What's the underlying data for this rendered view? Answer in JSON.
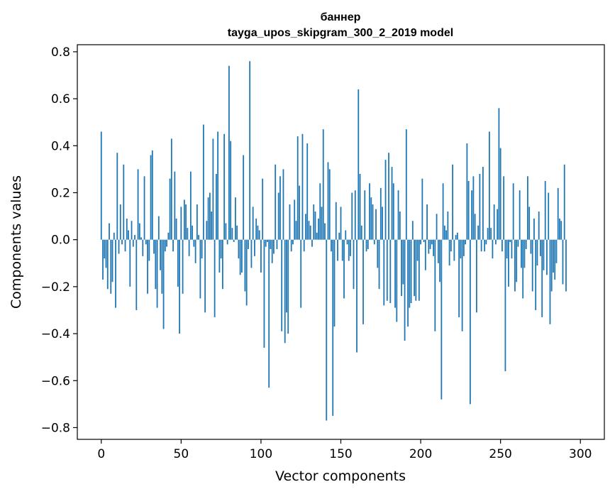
{
  "chart_data": {
    "type": "bar",
    "title_line1": "баннер",
    "title_line2": "tayga_upos_skipgram_300_2_2019 model",
    "xlabel": "Vector components",
    "ylabel": "Components values",
    "xlim": [
      -15,
      315
    ],
    "ylim": [
      -0.85,
      0.83
    ],
    "x_ticks": [
      0,
      50,
      100,
      150,
      200,
      250,
      300
    ],
    "x_tick_labels": [
      "0",
      "50",
      "100",
      "150",
      "200",
      "250",
      "300"
    ],
    "y_ticks": [
      0.8,
      0.6,
      0.4,
      0.2,
      0.0,
      -0.2,
      -0.4,
      -0.6,
      -0.8
    ],
    "y_tick_labels": [
      "0.8",
      "0.6",
      "0.4",
      "0.2",
      "0.0",
      "−0.2",
      "−0.4",
      "−0.6",
      "−0.8"
    ],
    "bar_color": "#1f77b4",
    "values": [
      0.46,
      -0.17,
      -0.08,
      -0.12,
      -0.21,
      0.07,
      -0.23,
      -0.18,
      0.03,
      -0.29,
      0.37,
      -0.06,
      0.15,
      -0.02,
      0.32,
      -0.05,
      0.09,
      0.04,
      -0.2,
      0.08,
      -0.03,
      0.02,
      -0.3,
      0.3,
      0.07,
      0.01,
      -0.07,
      0.27,
      -0.02,
      -0.23,
      -0.09,
      0.36,
      0.38,
      -0.06,
      -0.21,
      -0.29,
      0.1,
      -0.13,
      -0.23,
      -0.38,
      -0.05,
      -0.03,
      0.03,
      0.26,
      0.43,
      -0.05,
      0.29,
      0.09,
      -0.2,
      -0.4,
      0.14,
      -0.23,
      0.17,
      0.15,
      0.05,
      -0.07,
      0.29,
      0.06,
      -0.03,
      -0.1,
      0.15,
      0.02,
      -0.25,
      -0.08,
      0.49,
      -0.31,
      0.08,
      0.18,
      0.2,
      0.12,
      0.43,
      -0.33,
      0.28,
      0.46,
      -0.14,
      -0.08,
      -0.21,
      0.45,
      0.07,
      -0.02,
      0.74,
      0.42,
      0.05,
      -0.01,
      0.18,
      0.06,
      -0.08,
      -0.15,
      -0.14,
      0.36,
      -0.22,
      -0.28,
      -0.04,
      0.76,
      -0.12,
      0.14,
      -0.07,
      0.09,
      0.06,
      0.04,
      -0.14,
      0.26,
      -0.46,
      -0.03,
      -0.01,
      -0.63,
      -0.04,
      -0.1,
      -0.06,
      0.32,
      -0.04,
      0.2,
      0.27,
      -0.39,
      0.3,
      -0.44,
      -0.31,
      -0.4,
      0.15,
      -0.05,
      -0.02,
      0.17,
      0.08,
      0.44,
      0.23,
      -0.29,
      0.45,
      -0.05,
      0.11,
      0.41,
      0.08,
      0.06,
      -0.03,
      0.15,
      0.12,
      0.03,
      0.09,
      0.24,
      0.14,
      0.47,
      0.07,
      -0.77,
      0.33,
      0.3,
      -0.05,
      -0.75,
      -0.37,
      0.16,
      -0.09,
      0.03,
      0.14,
      -0.09,
      -0.25,
      0.04,
      -0.02,
      -0.09,
      -0.07,
      0.2,
      -0.21,
      0.21,
      -0.48,
      0.64,
      0.28,
      0.06,
      -0.36,
      0.21,
      -0.05,
      -0.04,
      0.24,
      0.18,
      0.15,
      -0.02,
      0.13,
      -0.12,
      -0.21,
      0.22,
      0.14,
      -0.28,
      0.34,
      -0.26,
      0.37,
      -0.27,
      0.31,
      0.24,
      -0.29,
      -0.35,
      0.21,
      0.12,
      -0.24,
      -0.19,
      -0.43,
      0.47,
      -0.37,
      -0.29,
      -0.27,
      0.08,
      -0.24,
      -0.26,
      -0.09,
      -0.26,
      -0.02,
      0.26,
      -0.01,
      -0.13,
      0.15,
      -0.06,
      -0.04,
      -0.02,
      -0.07,
      -0.39,
      0.11,
      -0.1,
      -0.18,
      -0.68,
      0.24,
      0.06,
      0.04,
      0.12,
      -0.11,
      -0.05,
      0.32,
      -0.09,
      0.02,
      0.03,
      -0.33,
      -0.08,
      -0.39,
      -0.07,
      -0.02,
      0.41,
      0.25,
      -0.7,
      0.21,
      0.27,
      0.11,
      -0.31,
      0.06,
      0.28,
      -0.05,
      0.31,
      -0.05,
      -0.02,
      0.05,
      0.46,
      0.05,
      -0.08,
      0.15,
      -0.02,
      0.13,
      0.56,
      0.39,
      -0.05,
      0.27,
      -0.56,
      -0.08,
      -0.2,
      -0.01,
      -0.08,
      0.24,
      -0.22,
      -0.18,
      -0.03,
      0.21,
      -0.12,
      -0.25,
      -0.12,
      -0.04,
      0.27,
      0.14,
      -0.06,
      -0.22,
      0.09,
      -0.3,
      -0.11,
      0.12,
      -0.07,
      -0.33,
      -0.13,
      0.25,
      -0.15,
      0.2,
      -0.36,
      -0.22,
      -0.14,
      -0.17,
      -0.1,
      0.22,
      0.09,
      0.08,
      -0.19,
      0.32,
      -0.22
    ]
  }
}
